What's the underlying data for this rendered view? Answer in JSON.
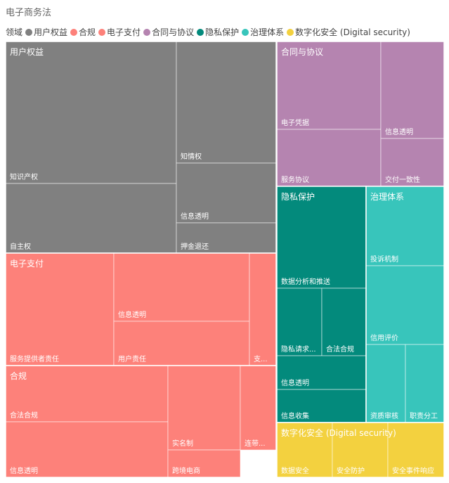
{
  "chart_data": {
    "type": "treemap",
    "title": "电子商务法",
    "legend": {
      "title": "领域",
      "placement": "top-left",
      "entries": [
        {
          "name": "用户权益",
          "color": "#808080"
        },
        {
          "name": "合规",
          "color": "#FD817A"
        },
        {
          "name": "电子支付",
          "color": "#FD817A"
        },
        {
          "name": "合同与协议",
          "color": "#B584B0"
        },
        {
          "name": "隐私保护",
          "color": "#038A7C"
        },
        {
          "name": "治理体系",
          "color": "#38C5BB"
        },
        {
          "name": "数字化安全 (Digital security)",
          "color": "#F3D13F"
        }
      ]
    },
    "groups": [
      {
        "name": "用户权益",
        "color": "#808080",
        "leaves": [
          {
            "name": "知识产权"
          },
          {
            "name": "自主权"
          },
          {
            "name": "知情权"
          },
          {
            "name": "信息透明"
          },
          {
            "name": "押金退还"
          }
        ]
      },
      {
        "name": "电子支付",
        "color": "#FD817A",
        "leaves": [
          {
            "name": "服务提供者责任"
          },
          {
            "name": "信息透明"
          },
          {
            "name": "用户责任"
          },
          {
            "name": "支..."
          }
        ]
      },
      {
        "name": "合规",
        "color": "#FD817A",
        "leaves": [
          {
            "name": "合法合规"
          },
          {
            "name": "信息透明"
          },
          {
            "name": "实名制"
          },
          {
            "name": "跨境电商"
          },
          {
            "name": "连带..."
          }
        ]
      },
      {
        "name": "合同与协议",
        "color": "#B584B0",
        "leaves": [
          {
            "name": "电子凭据"
          },
          {
            "name": "服务协议"
          },
          {
            "name": "信息透明"
          },
          {
            "name": "交付一致性"
          }
        ]
      },
      {
        "name": "隐私保护",
        "color": "#038A7C",
        "leaves": [
          {
            "name": "数据分析和推送"
          },
          {
            "name": "隐私请求..."
          },
          {
            "name": "合法合规"
          },
          {
            "name": "信息透明"
          },
          {
            "name": "信息收集"
          }
        ]
      },
      {
        "name": "治理体系",
        "color": "#38C5BB",
        "leaves": [
          {
            "name": "投诉机制"
          },
          {
            "name": "信用评价"
          },
          {
            "name": "资质审核"
          },
          {
            "name": "职责分工"
          }
        ]
      },
      {
        "name": "数字化安全 (Digital security)",
        "color": "#F3D13F",
        "leaves": [
          {
            "name": "数据安全"
          },
          {
            "name": "安全防护"
          },
          {
            "name": "安全事件响应"
          }
        ]
      }
    ]
  }
}
